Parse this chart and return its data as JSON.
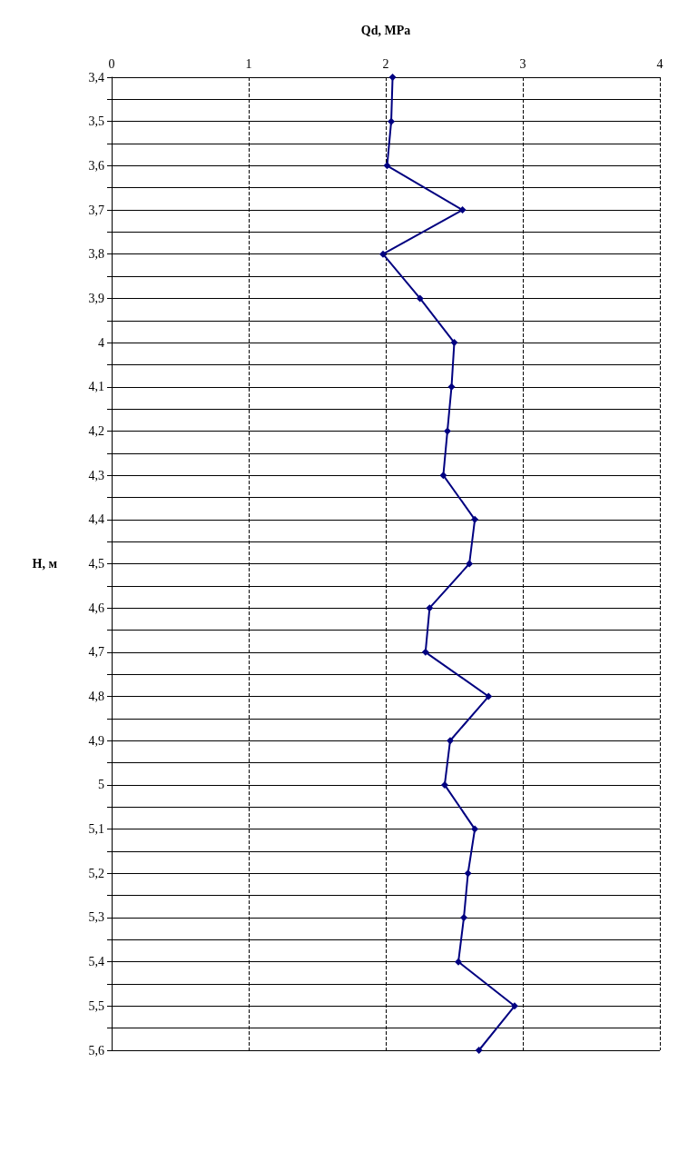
{
  "chart_data": {
    "type": "line",
    "xlabel": "Qd, MPa",
    "ylabel": "H, м",
    "series": [
      {
        "color": "#000080",
        "x": [
          2.05,
          2.04,
          2.01,
          2.56,
          1.98,
          2.25,
          2.5,
          2.48,
          2.45,
          2.42,
          2.65,
          2.61,
          2.32,
          2.29,
          2.75,
          2.47,
          2.43,
          2.65,
          2.6,
          2.57,
          2.53,
          2.94,
          2.68
        ],
        "values": [
          3.4,
          3.5,
          3.6,
          3.7,
          3.8,
          3.9,
          4.0,
          4.1,
          4.2,
          4.3,
          4.4,
          4.5,
          4.6,
          4.7,
          4.8,
          4.9,
          5.0,
          5.1,
          5.2,
          5.3,
          5.4,
          5.5,
          5.6
        ]
      }
    ],
    "xlim": [
      0,
      4
    ],
    "xticks": [
      0,
      1,
      2,
      3,
      4
    ],
    "ylim": [
      5.6,
      3.4
    ],
    "yticks": [
      {
        "value": 3.4,
        "label": "3,4"
      },
      {
        "value": 3.45,
        "label": null
      },
      {
        "value": 3.5,
        "label": "3,5"
      },
      {
        "value": 3.55,
        "label": null
      },
      {
        "value": 3.6,
        "label": "3,6"
      },
      {
        "value": 3.65,
        "label": null
      },
      {
        "value": 3.7,
        "label": "3,7"
      },
      {
        "value": 3.75,
        "label": null
      },
      {
        "value": 3.8,
        "label": "3,8"
      },
      {
        "value": 3.85,
        "label": null
      },
      {
        "value": 3.9,
        "label": "3,9"
      },
      {
        "value": 3.95,
        "label": null
      },
      {
        "value": 4.0,
        "label": "4"
      },
      {
        "value": 4.05,
        "label": null
      },
      {
        "value": 4.1,
        "label": "4,1"
      },
      {
        "value": 4.15,
        "label": null
      },
      {
        "value": 4.2,
        "label": "4,2"
      },
      {
        "value": 4.25,
        "label": null
      },
      {
        "value": 4.3,
        "label": "4,3"
      },
      {
        "value": 4.35,
        "label": null
      },
      {
        "value": 4.4,
        "label": "4,4"
      },
      {
        "value": 4.45,
        "label": null
      },
      {
        "value": 4.5,
        "label": "4,5"
      },
      {
        "value": 4.55,
        "label": null
      },
      {
        "value": 4.6,
        "label": "4,6"
      },
      {
        "value": 4.65,
        "label": null
      },
      {
        "value": 4.7,
        "label": "4,7"
      },
      {
        "value": 4.75,
        "label": null
      },
      {
        "value": 4.8,
        "label": "4,8"
      },
      {
        "value": 4.85,
        "label": null
      },
      {
        "value": 4.9,
        "label": "4,9"
      },
      {
        "value": 4.95,
        "label": null
      },
      {
        "value": 5.0,
        "label": "5"
      },
      {
        "value": 5.05,
        "label": null
      },
      {
        "value": 5.1,
        "label": "5,1"
      },
      {
        "value": 5.15,
        "label": null
      },
      {
        "value": 5.2,
        "label": "5,2"
      },
      {
        "value": 5.25,
        "label": null
      },
      {
        "value": 5.3,
        "label": "5,3"
      },
      {
        "value": 5.35,
        "label": null
      },
      {
        "value": 5.4,
        "label": "5,4"
      },
      {
        "value": 5.45,
        "label": null
      },
      {
        "value": 5.5,
        "label": "5,5"
      },
      {
        "value": 5.55,
        "label": null
      },
      {
        "value": 5.6,
        "label": "5,6"
      }
    ],
    "grid": true,
    "marker": "diamond",
    "line_style": "solid"
  }
}
